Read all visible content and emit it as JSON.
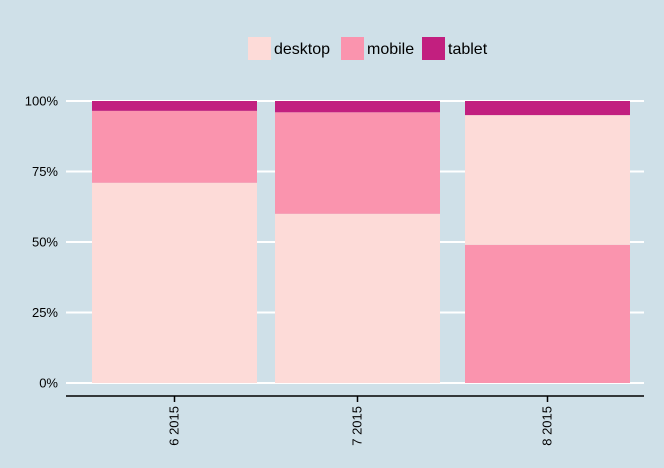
{
  "chart_data": {
    "type": "bar",
    "stacked": true,
    "normalized": true,
    "categories": [
      "6 2015",
      "7 2015",
      "8 2015"
    ],
    "series": [
      {
        "name": "desktop",
        "color": "#fddbd8",
        "values": [
          0.71,
          0.6,
          0.46
        ]
      },
      {
        "name": "mobile",
        "color": "#fa94ae",
        "values": [
          0.255,
          0.36,
          0.49
        ]
      },
      {
        "name": "tablet",
        "color": "#c21f7f",
        "values": [
          0.035,
          0.04,
          0.05
        ]
      }
    ],
    "stack_order_bottom_to_top": {
      "6 2015": [
        "desktop",
        "mobile",
        "tablet"
      ],
      "7 2015": [
        "desktop",
        "mobile",
        "tablet"
      ],
      "8 2015": [
        "mobile",
        "desktop",
        "tablet"
      ]
    },
    "y_ticks": [
      {
        "value": 0,
        "label": "0%"
      },
      {
        "value": 0.25,
        "label": "25%"
      },
      {
        "value": 0.5,
        "label": "50%"
      },
      {
        "value": 0.75,
        "label": "75%"
      },
      {
        "value": 1,
        "label": "100%"
      }
    ],
    "ylim": [
      0,
      1
    ],
    "xlabel": "",
    "ylabel": "",
    "title": "",
    "grid": "horizontal",
    "legend_position": "top",
    "x_tick_label_rotation": "vertical",
    "background_color": "#cfe0e8",
    "gridline_color": "#ffffff"
  }
}
